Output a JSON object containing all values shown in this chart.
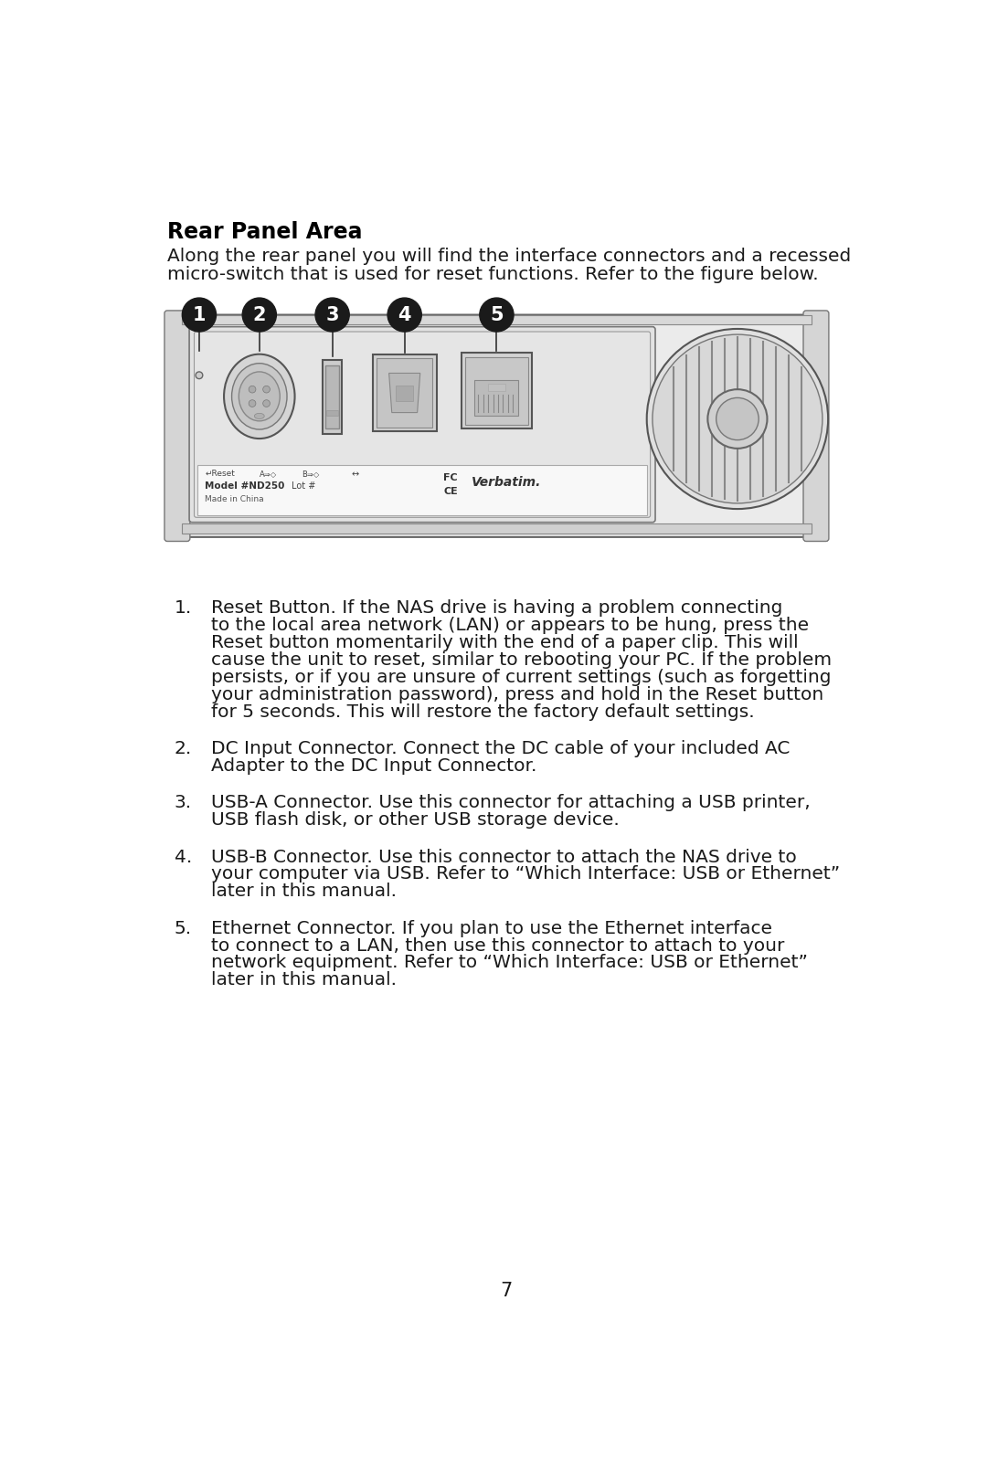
{
  "title": "Rear Panel Area",
  "intro_line1": "Along the rear panel you will find the interface connectors and a recessed",
  "intro_line2": "micro-switch that is used for reset functions. Refer to the figure below.",
  "items": [
    {
      "num": "1.",
      "text_lines": [
        "Reset Button. If the NAS drive is having a problem connecting",
        "to the local area network (LAN) or appears to be hung, press the",
        "Reset button momentarily with the end of a paper clip. This will",
        "cause the unit to reset, similar to rebooting your PC. If the problem",
        "persists, or if you are unsure of current settings (such as forgetting",
        "your administration password), press and hold in the Reset button",
        "for 5 seconds. This will restore the factory default settings."
      ]
    },
    {
      "num": "2.",
      "text_lines": [
        "DC Input Connector. Connect the DC cable of your included AC",
        "Adapter to the DC Input Connector."
      ]
    },
    {
      "num": "3.",
      "text_lines": [
        "USB-A Connector. Use this connector for attaching a USB printer,",
        "USB flash disk, or other USB storage device."
      ]
    },
    {
      "num": "4.",
      "text_lines": [
        "USB-B Connector. Use this connector to attach the NAS drive to",
        "your computer via USB. Refer to “Which Interface: USB or Ethernet”",
        "later in this manual."
      ]
    },
    {
      "num": "5.",
      "text_lines": [
        "Ethernet Connector. If you plan to use the Ethernet interface",
        "to connect to a LAN, then use this connector to attach to your",
        "network equipment. Refer to “Which Interface: USB or Ethernet”",
        "later in this manual."
      ]
    }
  ],
  "page_number": "7",
  "bg": "#ffffff",
  "text_color": "#1a1a1a",
  "title_color": "#000000",
  "bubble_color": "#1a1a1a",
  "device_edge": "#555555",
  "device_fill": "#f5f5f5",
  "line_color": "#333333"
}
